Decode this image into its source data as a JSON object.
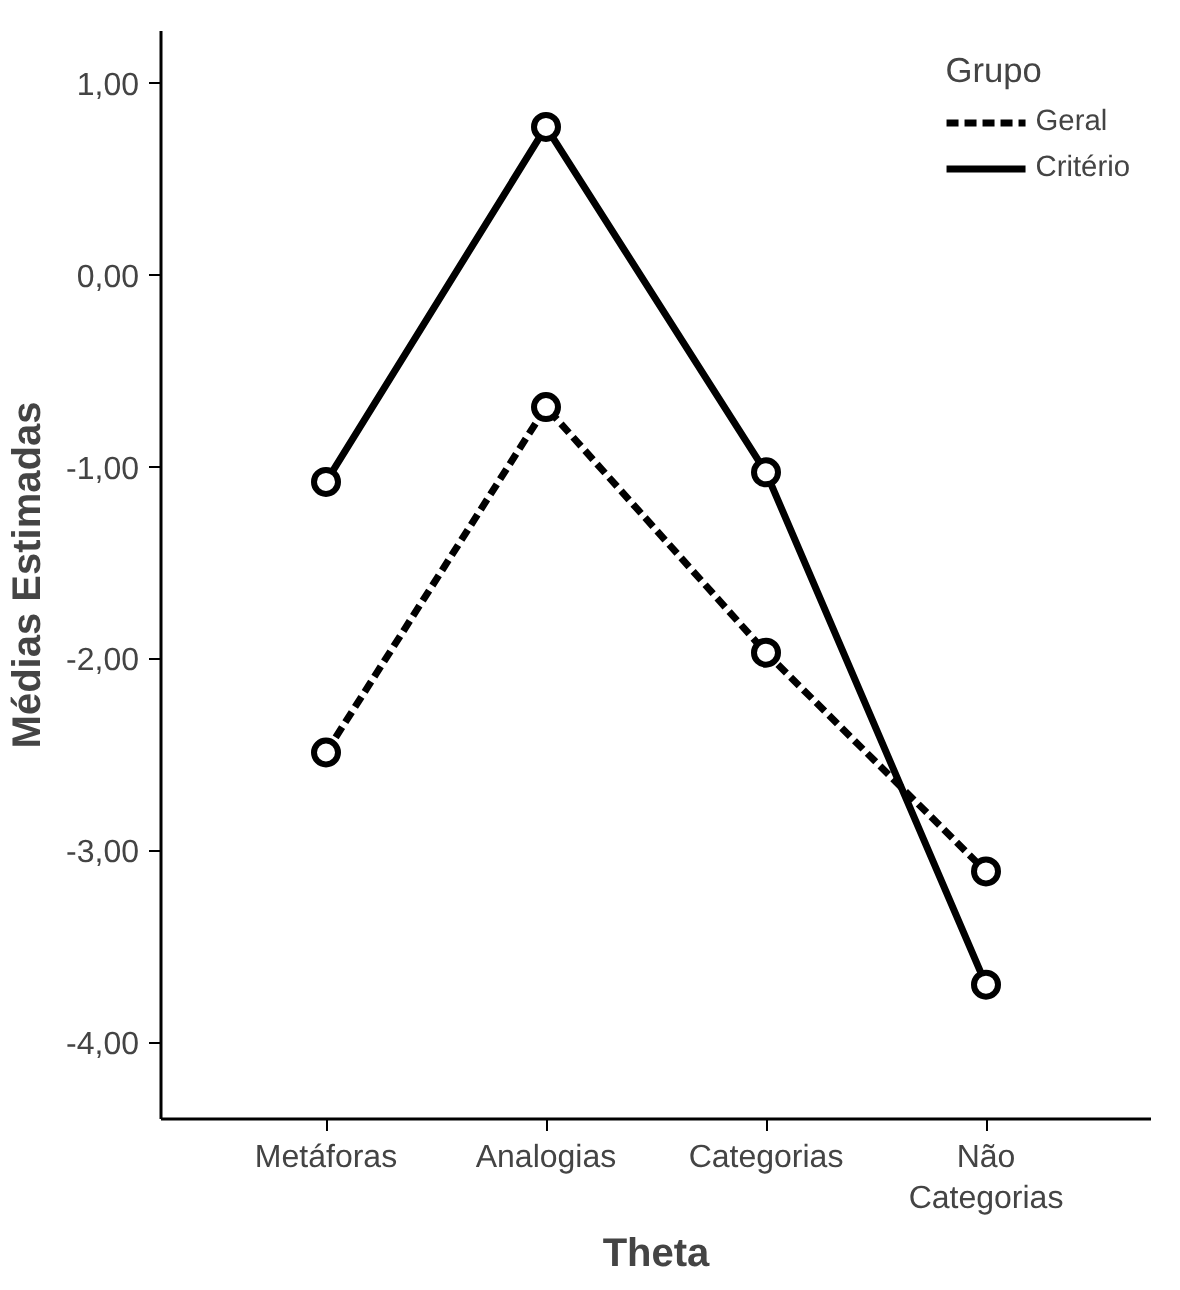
{
  "chart_data": {
    "type": "line",
    "xlabel": "Theta",
    "ylabel": "Médias Estimadas",
    "legend_title": "Grupo",
    "legend": "top right",
    "marker": "circle",
    "grid": false,
    "categories": [
      "Metáforas",
      "Analogias",
      "Categorias",
      "Não Categorias"
    ],
    "ylim": [
      -4.4,
      1.27
    ],
    "yticks": [
      {
        "value": -4,
        "label": "-4,00"
      },
      {
        "value": -3,
        "label": "-3,00"
      },
      {
        "value": -2,
        "label": "-2,00"
      },
      {
        "value": -1,
        "label": "-1,00"
      },
      {
        "value": 0,
        "label": "0,00"
      },
      {
        "value": 1,
        "label": "1,00"
      }
    ],
    "series": [
      {
        "name": "Geral",
        "color": "#000000",
        "line_style": "dashed",
        "values": [
          -2.49,
          -0.69,
          -1.97,
          -3.11
        ]
      },
      {
        "name": "Critério",
        "color": "#000000",
        "line_style": "solid",
        "values": [
          -1.08,
          0.77,
          -1.03,
          -3.7
        ]
      }
    ]
  }
}
